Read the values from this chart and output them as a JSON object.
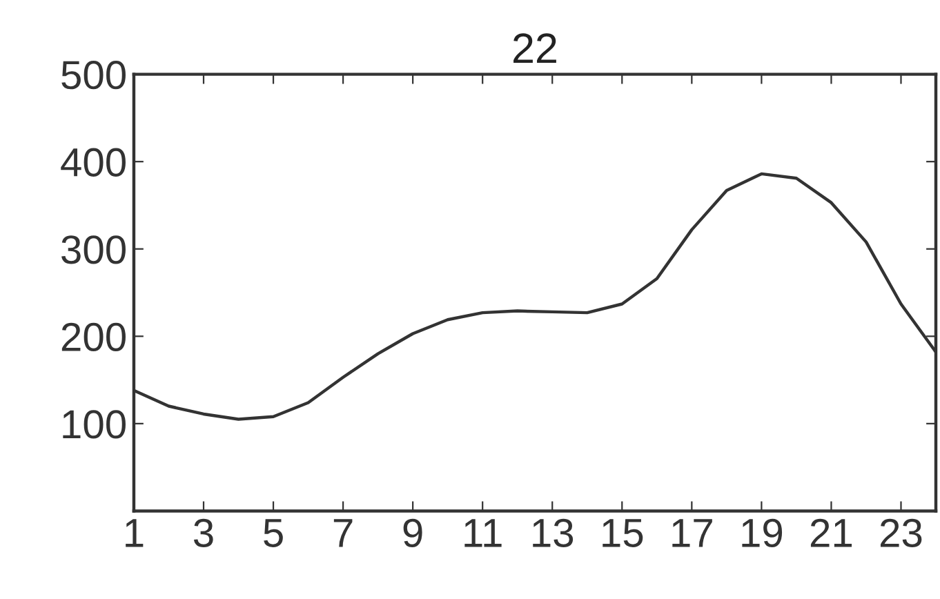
{
  "chart_data": {
    "type": "line",
    "title": "22",
    "x": [
      1,
      2,
      3,
      4,
      5,
      6,
      7,
      8,
      9,
      10,
      11,
      12,
      13,
      14,
      15,
      16,
      17,
      18,
      19,
      20,
      21,
      22,
      23,
      24
    ],
    "series": [
      {
        "color": "#333333",
        "values": [
          138,
          120,
          111,
          105,
          108,
          124,
          153,
          180,
          203,
          219,
          227,
          229,
          228,
          227,
          237,
          266,
          322,
          367,
          386,
          381,
          353,
          308,
          237,
          182
        ]
      }
    ],
    "xlim": [
      1,
      24
    ],
    "xticks": [
      1,
      3,
      5,
      7,
      9,
      11,
      13,
      15,
      17,
      19,
      21,
      23
    ],
    "ylim": [
      0,
      500
    ],
    "yticks": [
      100,
      200,
      300,
      400,
      500
    ],
    "grid": false,
    "legend": false,
    "marker": "none",
    "line_style": "solid"
  }
}
